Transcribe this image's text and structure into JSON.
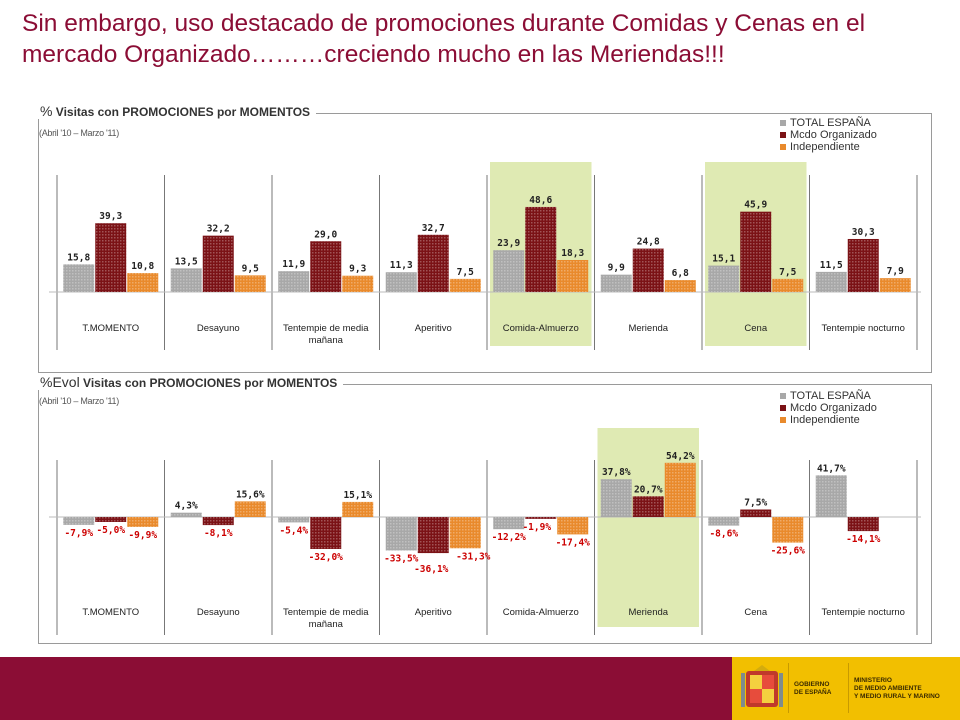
{
  "title": "Sin embargo, uso destacado de promociones durante Comidas y Cenas en el mercado Organizado………creciendo mucho en las Meriendas!!!",
  "colors": {
    "total": "#a8a8a8",
    "organizado": "#7b1216",
    "independiente": "#e98a2c",
    "highlight": "#dfeab3",
    "negative_label": "#cc0000",
    "brand": "#8b0d35"
  },
  "chart_data": [
    {
      "type": "bar",
      "title_prefix": "%",
      "title": "Visitas con PROMOCIONES por MOMENTOS",
      "subtitle": "(Abril '10 – Marzo '11)",
      "categories": [
        "T.MOMENTO",
        "Desayuno",
        "Tentempie de media mañana",
        "Aperitivo",
        "Comida-Almuerzo",
        "Merienda",
        "Cena",
        "Tentempie nocturno"
      ],
      "category_lines": [
        [
          "T.MOMENTO"
        ],
        [
          "Desayuno"
        ],
        [
          "Tentempie de media",
          "mañana"
        ],
        [
          "Aperitivo"
        ],
        [
          "Comida-Almuerzo"
        ],
        [
          "Merienda"
        ],
        [
          "Cena"
        ],
        [
          "Tentempie nocturno"
        ]
      ],
      "series": [
        {
          "name": "TOTAL ESPAÑA",
          "values": [
            15.8,
            13.5,
            11.9,
            11.3,
            23.9,
            9.9,
            15.1,
            11.5
          ],
          "labels": [
            "15,8",
            "13,5",
            "11,9",
            "11,3",
            "23,9",
            "9,9",
            "15,1",
            "11,5"
          ]
        },
        {
          "name": "Mcdo Organizado",
          "values": [
            39.3,
            32.2,
            29.0,
            32.7,
            48.6,
            24.8,
            45.9,
            30.3
          ],
          "labels": [
            "39,3",
            "32,2",
            "29,0",
            "32,7",
            "48,6",
            "24,8",
            "45,9",
            "30,3"
          ]
        },
        {
          "name": "Independiente",
          "values": [
            10.8,
            9.5,
            9.3,
            7.5,
            18.3,
            6.8,
            7.5,
            7.9
          ],
          "labels": [
            "10,8",
            "9,5",
            "9,3",
            "7,5",
            "18,3",
            "6,8",
            "7,5",
            "7,9"
          ]
        }
      ],
      "highlighted": [
        "Comida-Almuerzo",
        "Cena"
      ],
      "ylim": [
        0,
        55
      ]
    },
    {
      "type": "bar",
      "title_prefix": "%Evol",
      "title": "Visitas con PROMOCIONES por MOMENTOS",
      "subtitle": "(Abril '10 – Marzo '11)",
      "categories": [
        "T.MOMENTO",
        "Desayuno",
        "Tentempie de media mañana",
        "Aperitivo",
        "Comida-Almuerzo",
        "Merienda",
        "Cena",
        "Tentempie nocturno"
      ],
      "category_lines": [
        [
          "T.MOMENTO"
        ],
        [
          "Desayuno"
        ],
        [
          "Tentempie de media",
          "mañana"
        ],
        [
          "Aperitivo"
        ],
        [
          "Comida-Almuerzo"
        ],
        [
          "Merienda"
        ],
        [
          "Cena"
        ],
        [
          "Tentempie nocturno"
        ]
      ],
      "series": [
        {
          "name": "TOTAL ESPAÑA",
          "values": [
            -7.9,
            4.3,
            -5.4,
            -33.5,
            -12.2,
            37.8,
            -8.6,
            41.7
          ],
          "labels": [
            "-7,9%",
            "4,3%",
            "-5,4%",
            "-33,5%",
            "-12,2%",
            "37,8%",
            "-8,6%",
            "41,7%"
          ]
        },
        {
          "name": "Mcdo Organizado",
          "values": [
            -5.0,
            -8.1,
            -32.0,
            -36.1,
            -1.9,
            20.7,
            7.5,
            -14.1
          ],
          "labels": [
            "-5,0%",
            "-8,1%",
            "-32,0%",
            "-36,1%",
            "-1,9%",
            "20,7%",
            "7,5%",
            "-14,1%"
          ]
        },
        {
          "name": "Independiente",
          "values": [
            -9.9,
            15.6,
            15.1,
            -31.3,
            -17.4,
            54.2,
            -25.6,
            null
          ],
          "labels": [
            "-9,9%",
            "15,6%",
            "15,1%",
            "-31,3%",
            "-17,4%",
            "54,2%",
            "-25,6%",
            ""
          ]
        }
      ],
      "highlighted": [
        "Merienda"
      ],
      "ylim": [
        -45,
        60
      ]
    }
  ],
  "logo": {
    "line1": "GOBIERNO",
    "line2": "DE ESPAÑA",
    "line3": "MINISTERIO",
    "line4": "DE MEDIO AMBIENTE",
    "line5": "Y MEDIO RURAL Y MARINO"
  }
}
